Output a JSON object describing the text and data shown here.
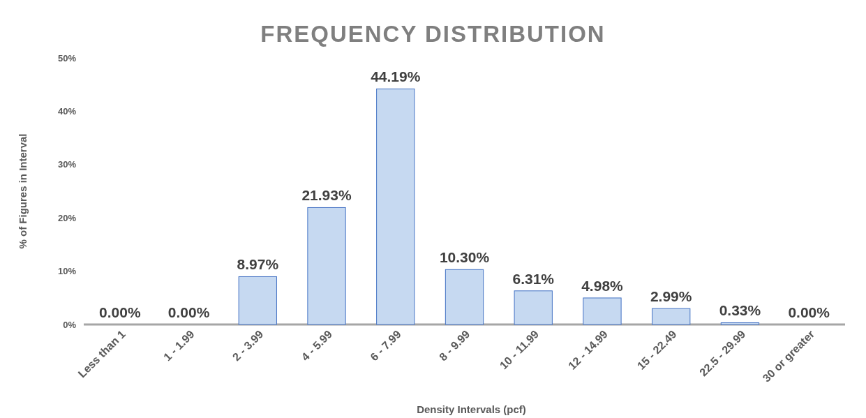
{
  "chart_data": {
    "type": "bar",
    "title": "FREQUENCY DISTRIBUTION",
    "xlabel": "Density Intervals (pcf)",
    "ylabel": "% of  Figures in Interval",
    "categories": [
      "Less than 1",
      "1 - 1.99",
      "2 - 3.99",
      "4 - 5.99",
      "6 - 7.99",
      "8 - 9.99",
      "10 - 11.99",
      "12 - 14.99",
      "15 - 22.49",
      "22.5 - 29.99",
      "30 or greater"
    ],
    "values": [
      0,
      0,
      8.97,
      21.93,
      44.19,
      10.3,
      6.31,
      4.98,
      2.99,
      0.33,
      0
    ],
    "value_labels": [
      "0.00%",
      "0.00%",
      "8.97%",
      "21.93%",
      "44.19%",
      "10.30%",
      "6.31%",
      "4.98%",
      "2.99%",
      "0.33%",
      "0.00%"
    ],
    "color": "#c6d9f1",
    "ylim": [
      0,
      50
    ],
    "yticks": [
      {
        "value": 0,
        "label": "0%"
      },
      {
        "value": 10,
        "label": "10%"
      },
      {
        "value": 20,
        "label": "20%"
      },
      {
        "value": 30,
        "label": "30%"
      },
      {
        "value": 40,
        "label": "40%"
      },
      {
        "value": 50,
        "label": "50%"
      }
    ],
    "grid": false
  }
}
